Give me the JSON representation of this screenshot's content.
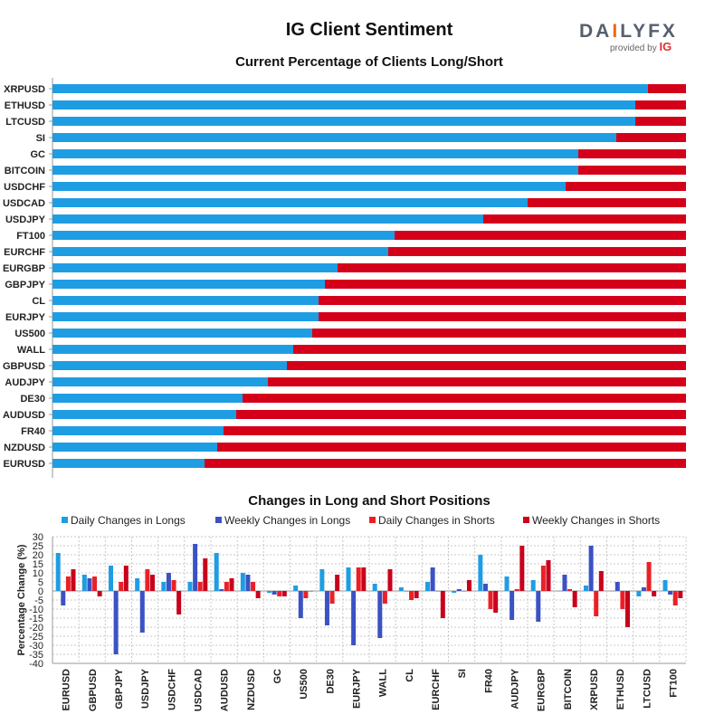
{
  "header": {
    "title": "IG Client Sentiment",
    "logo_main_a": "DA",
    "logo_main_b": "LY",
    "logo_main_fx": "FX",
    "logo_sub": "provided by",
    "logo_sub_brand": "IG"
  },
  "colors": {
    "long": "#1f9de3",
    "short": "#d4001a",
    "daily_long": "#1f9de3",
    "weekly_long": "#3a52c4",
    "daily_short": "#ec1f26",
    "weekly_short": "#c8001c"
  },
  "chart_data": [
    {
      "type": "bar",
      "orientation": "horizontal",
      "stacked": true,
      "title": "Current Percentage of Clients Long/Short",
      "categories": [
        "XRPUSD",
        "ETHUSD",
        "LTCUSD",
        "SI",
        "GC",
        "BITCOIN",
        "USDCHF",
        "USDCAD",
        "USDJPY",
        "FT100",
        "EURCHF",
        "EURGBP",
        "GBPJPY",
        "CL",
        "EURJPY",
        "US500",
        "WALL",
        "GBPUSD",
        "AUDJPY",
        "DE30",
        "AUDUSD",
        "FR40",
        "NZDUSD",
        "EURUSD"
      ],
      "series": [
        {
          "values": [
            94,
            92,
            92,
            89,
            83,
            83,
            81,
            75,
            68,
            54,
            53,
            45,
            43,
            42,
            42,
            41,
            38,
            37,
            34,
            30,
            29,
            27,
            26,
            24
          ]
        },
        {
          "values": [
            6,
            8,
            8,
            11,
            17,
            17,
            19,
            25,
            32,
            46,
            47,
            55,
            57,
            58,
            58,
            59,
            62,
            63,
            66,
            70,
            71,
            73,
            74,
            76
          ]
        }
      ],
      "xlim": [
        0,
        100
      ]
    },
    {
      "type": "bar",
      "title": "Changes in Long and Short Positions",
      "ylabel": "Percentage Change (%)",
      "ylim": [
        -40,
        30
      ],
      "yticks": [
        30,
        25,
        20,
        15,
        10,
        5,
        0,
        -5,
        -10,
        -15,
        -20,
        -25,
        -30,
        -35,
        -40
      ],
      "grid": true,
      "legend": "top-left",
      "categories": [
        "EURUSD",
        "GBPUSD",
        "GBPJPY",
        "USDJPY",
        "USDCHF",
        "USDCAD",
        "AUDUSD",
        "NZDUSD",
        "GC",
        "US500",
        "DE30",
        "EURJPY",
        "WALL",
        "CL",
        "EURCHF",
        "SI",
        "FR40",
        "AUDJPY",
        "EURGBP",
        "BITCOIN",
        "XRPUSD",
        "ETHUSD",
        "LTCUSD",
        "FT100"
      ],
      "series": [
        {
          "name": "Daily Changes in Longs",
          "values": [
            21,
            9,
            14,
            7,
            5,
            5,
            21,
            10,
            -1,
            3,
            12,
            13,
            4,
            2,
            5,
            -1,
            20,
            8,
            6,
            0,
            3,
            0,
            -3,
            6
          ]
        },
        {
          "name": "Weekly Changes in Longs",
          "values": [
            -8,
            7,
            -35,
            -23,
            10,
            26,
            1,
            9,
            -2,
            -15,
            -19,
            -30,
            -26,
            0,
            13,
            1,
            4,
            -16,
            -17,
            9,
            25,
            5,
            2,
            -2
          ]
        },
        {
          "name": "Daily Changes in Shorts",
          "values": [
            8,
            8,
            5,
            12,
            6,
            5,
            5,
            5,
            -3,
            -4,
            -7,
            13,
            -7,
            -5,
            0,
            0,
            -10,
            1,
            14,
            1,
            -14,
            -10,
            16,
            -8
          ]
        },
        {
          "name": "Weekly Changes in Shorts",
          "values": [
            12,
            -3,
            14,
            9,
            -13,
            18,
            7,
            -4,
            -3,
            0,
            9,
            13,
            12,
            -4,
            -15,
            6,
            -12,
            25,
            17,
            -9,
            11,
            -20,
            -3,
            -4
          ]
        }
      ]
    }
  ]
}
